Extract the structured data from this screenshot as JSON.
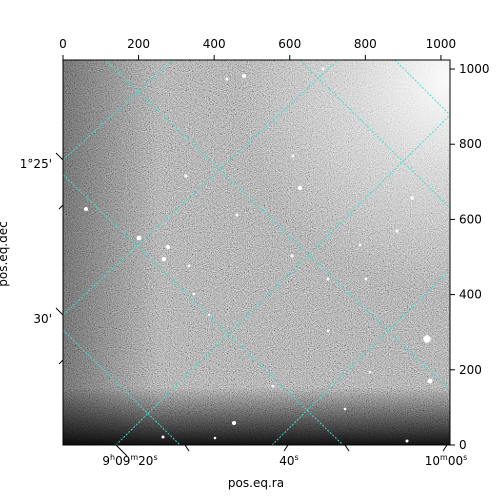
{
  "chart_data": {
    "type": "image",
    "xlabel": "pos.eq.ra",
    "ylabel": "pos.eq.dec",
    "pixel_axes": {
      "x_ticks": [
        0,
        200,
        400,
        600,
        800,
        1000
      ],
      "x_labels": [
        "0",
        "200",
        "400",
        "600",
        "800",
        "1000"
      ],
      "xlim": [
        0,
        1024
      ],
      "y_ticks": [
        0,
        200,
        400,
        600,
        800,
        1000
      ],
      "y_labels": [
        "0",
        "200",
        "400",
        "600",
        "800",
        "1000"
      ],
      "ylim": [
        0,
        1024
      ]
    },
    "world_axes": {
      "ra_ticks": [
        {
          "label": "9h09m20s",
          "h": "9",
          "m": "09",
          "s": "20"
        },
        {
          "label": "40s",
          "h": "",
          "m": "",
          "s": "40"
        },
        {
          "label": "10m00s",
          "h": "",
          "m": "10",
          "s": "00"
        }
      ],
      "dec_ticks": [
        {
          "label": "1°25'"
        },
        {
          "label": "30'"
        }
      ]
    },
    "grid": true,
    "grid_color": "#40e0d0",
    "colormap": "gray"
  }
}
